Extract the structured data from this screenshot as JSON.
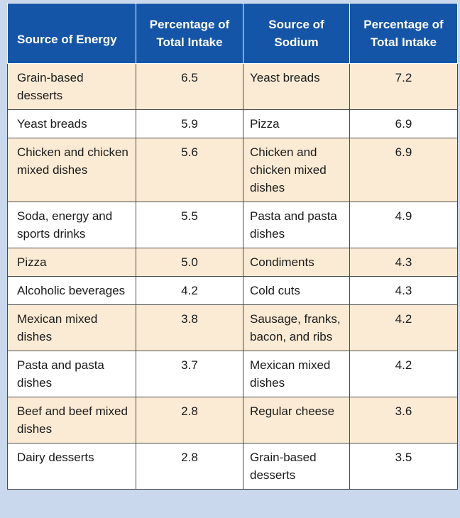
{
  "table": {
    "headers": [
      "Source of Energy",
      "Percentage of Total Intake",
      "Source of Sodium",
      "Percentage of Total Intake"
    ],
    "rows": [
      {
        "energy_source": "Grain-based desserts",
        "energy_pct": "6.5",
        "sodium_source": "Yeast breads",
        "sodium_pct": "7.2"
      },
      {
        "energy_source": "Yeast breads",
        "energy_pct": "5.9",
        "sodium_source": "Pizza",
        "sodium_pct": "6.9"
      },
      {
        "energy_source": "Chicken and chicken mixed dishes",
        "energy_pct": "5.6",
        "sodium_source": "Chicken and chicken mixed dishes",
        "sodium_pct": "6.9"
      },
      {
        "energy_source": "Soda, energy and sports drinks",
        "energy_pct": "5.5",
        "sodium_source": "Pasta and pasta dishes",
        "sodium_pct": "4.9"
      },
      {
        "energy_source": "Pizza",
        "energy_pct": "5.0",
        "sodium_source": "Condiments",
        "sodium_pct": "4.3"
      },
      {
        "energy_source": "Alcoholic beverages",
        "energy_pct": "4.2",
        "sodium_source": "Cold cuts",
        "sodium_pct": "4.3"
      },
      {
        "energy_source": "Mexican mixed dishes",
        "energy_pct": "3.8",
        "sodium_source": "Sausage, franks, bacon, and ribs",
        "sodium_pct": "4.2"
      },
      {
        "energy_source": "Pasta and pasta dishes",
        "energy_pct": "3.7",
        "sodium_source": "Mexican mixed dishes",
        "sodium_pct": "4.2"
      },
      {
        "energy_source": "Beef and beef mixed dishes",
        "energy_pct": "2.8",
        "sodium_source": "Regular cheese",
        "sodium_pct": "3.6"
      },
      {
        "energy_source": "Dairy desserts",
        "energy_pct": "2.8",
        "sodium_source": "Grain-based desserts",
        "sodium_pct": "3.5"
      }
    ]
  },
  "colors": {
    "header_bg": "#1555a8",
    "row_tan": "#fcebd4",
    "row_white": "#ffffff",
    "frame_bg": "#c9d8ec"
  }
}
